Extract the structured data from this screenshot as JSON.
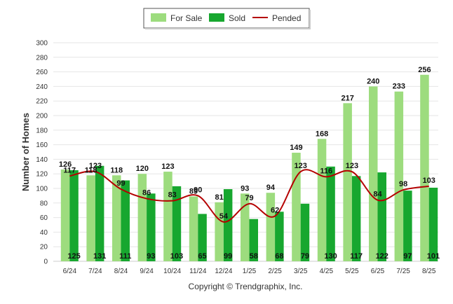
{
  "chart_data": {
    "type": "bar",
    "categories": [
      "6/24",
      "7/24",
      "8/24",
      "9/24",
      "10/24",
      "11/24",
      "12/24",
      "1/25",
      "2/25",
      "3/25",
      "4/25",
      "5/25",
      "6/25",
      "7/25",
      "8/25"
    ],
    "series": [
      {
        "name": "For Sale",
        "kind": "bar",
        "color": "#9ddc7e",
        "values": [
          126,
          118,
          118,
          120,
          123,
          89,
          81,
          93,
          94,
          149,
          168,
          217,
          240,
          233,
          256
        ]
      },
      {
        "name": "Sold",
        "kind": "bar",
        "color": "#17a72f",
        "values": [
          125,
          131,
          111,
          93,
          103,
          65,
          99,
          58,
          68,
          79,
          130,
          117,
          122,
          97,
          101
        ]
      },
      {
        "name": "Pended",
        "kind": "line",
        "color": "#b50000",
        "values": [
          117,
          123,
          99,
          86,
          83,
          90,
          54,
          79,
          62,
          123,
          116,
          123,
          84,
          98,
          103
        ]
      }
    ],
    "ylabel": "Number of Homes",
    "xlabel": "",
    "ylim": [
      0,
      300
    ],
    "yticks": [
      0,
      20,
      40,
      60,
      80,
      100,
      120,
      140,
      160,
      180,
      200,
      220,
      240,
      260,
      280,
      300
    ],
    "grid": true,
    "legend": "top-center",
    "footer": "Copyright © Trendgraphix, Inc."
  }
}
